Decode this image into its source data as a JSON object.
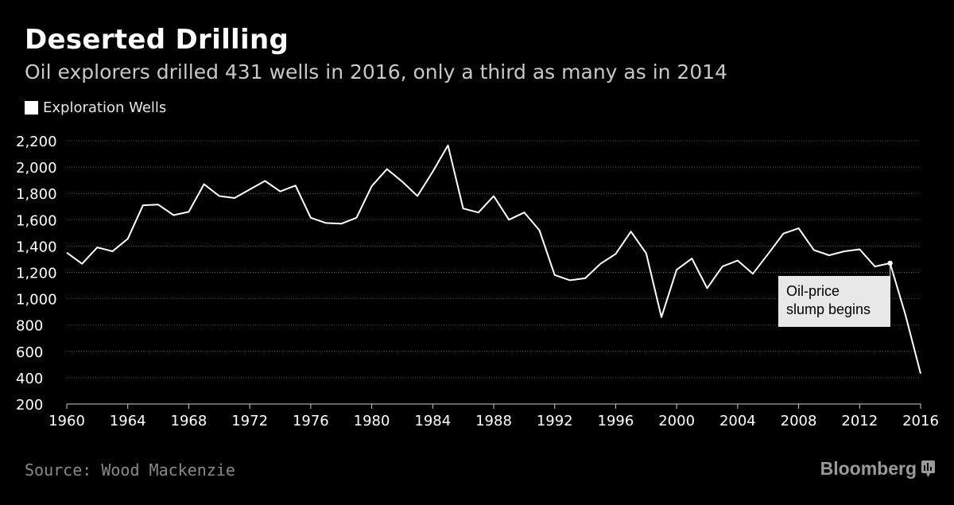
{
  "header": {
    "title": "Deserted Drilling",
    "subtitle": "Oil explorers drilled 431 wells in 2016, only a third as many as in 2014"
  },
  "legend": {
    "label": "Exploration Wells"
  },
  "footer": {
    "source": "Source: Wood Mackenzie",
    "brand": "Bloomberg"
  },
  "colors": {
    "background": "#000000",
    "line": "#ffffff",
    "grid": "#555555",
    "axis_text": "#ffffff"
  },
  "chart_data": {
    "type": "line",
    "title": "Deserted Drilling",
    "subtitle": "Oil explorers drilled 431 wells in 2016, only a third as many as in 2014",
    "xlabel": "",
    "ylabel": "",
    "xlim": [
      1960,
      2016
    ],
    "ylim": [
      200,
      2200
    ],
    "x_ticks": [
      1960,
      1964,
      1968,
      1972,
      1976,
      1980,
      1984,
      1988,
      1992,
      1996,
      2000,
      2004,
      2008,
      2012,
      2016
    ],
    "y_ticks": [
      200,
      400,
      600,
      800,
      1000,
      1200,
      1400,
      1600,
      1800,
      2000,
      2200
    ],
    "y_tick_labels": [
      "200",
      "400",
      "600",
      "800",
      "1,000",
      "1,200",
      "1,400",
      "1,600",
      "1,800",
      "2,000",
      "2,200"
    ],
    "grid": "horizontal",
    "legend": "top-left",
    "series": [
      {
        "name": "Exploration Wells",
        "x": [
          1960,
          1961,
          1962,
          1963,
          1964,
          1965,
          1966,
          1967,
          1968,
          1969,
          1970,
          1971,
          1972,
          1973,
          1974,
          1975,
          1976,
          1977,
          1978,
          1979,
          1980,
          1981,
          1982,
          1983,
          1984,
          1985,
          1986,
          1987,
          1988,
          1989,
          1990,
          1991,
          1992,
          1993,
          1994,
          1995,
          1996,
          1997,
          1998,
          1999,
          2000,
          2001,
          2002,
          2003,
          2004,
          2005,
          2006,
          2007,
          2008,
          2009,
          2010,
          2011,
          2012,
          2013,
          2014,
          2015,
          2016
        ],
        "values": [
          1350,
          1265,
          1390,
          1360,
          1455,
          1710,
          1715,
          1635,
          1660,
          1870,
          1780,
          1765,
          1830,
          1895,
          1815,
          1860,
          1615,
          1575,
          1570,
          1615,
          1855,
          1985,
          1890,
          1780,
          1965,
          2165,
          1685,
          1655,
          1780,
          1600,
          1655,
          1520,
          1180,
          1140,
          1155,
          1265,
          1340,
          1510,
          1345,
          860,
          1220,
          1305,
          1080,
          1245,
          1290,
          1190,
          1340,
          1495,
          1535,
          1370,
          1330,
          1360,
          1375,
          1245,
          1270,
          880,
          431
        ]
      }
    ],
    "annotations": [
      {
        "text_line1": "Oil-price",
        "text_line2": "slump begins",
        "x": 2014,
        "y": 1270
      }
    ]
  }
}
